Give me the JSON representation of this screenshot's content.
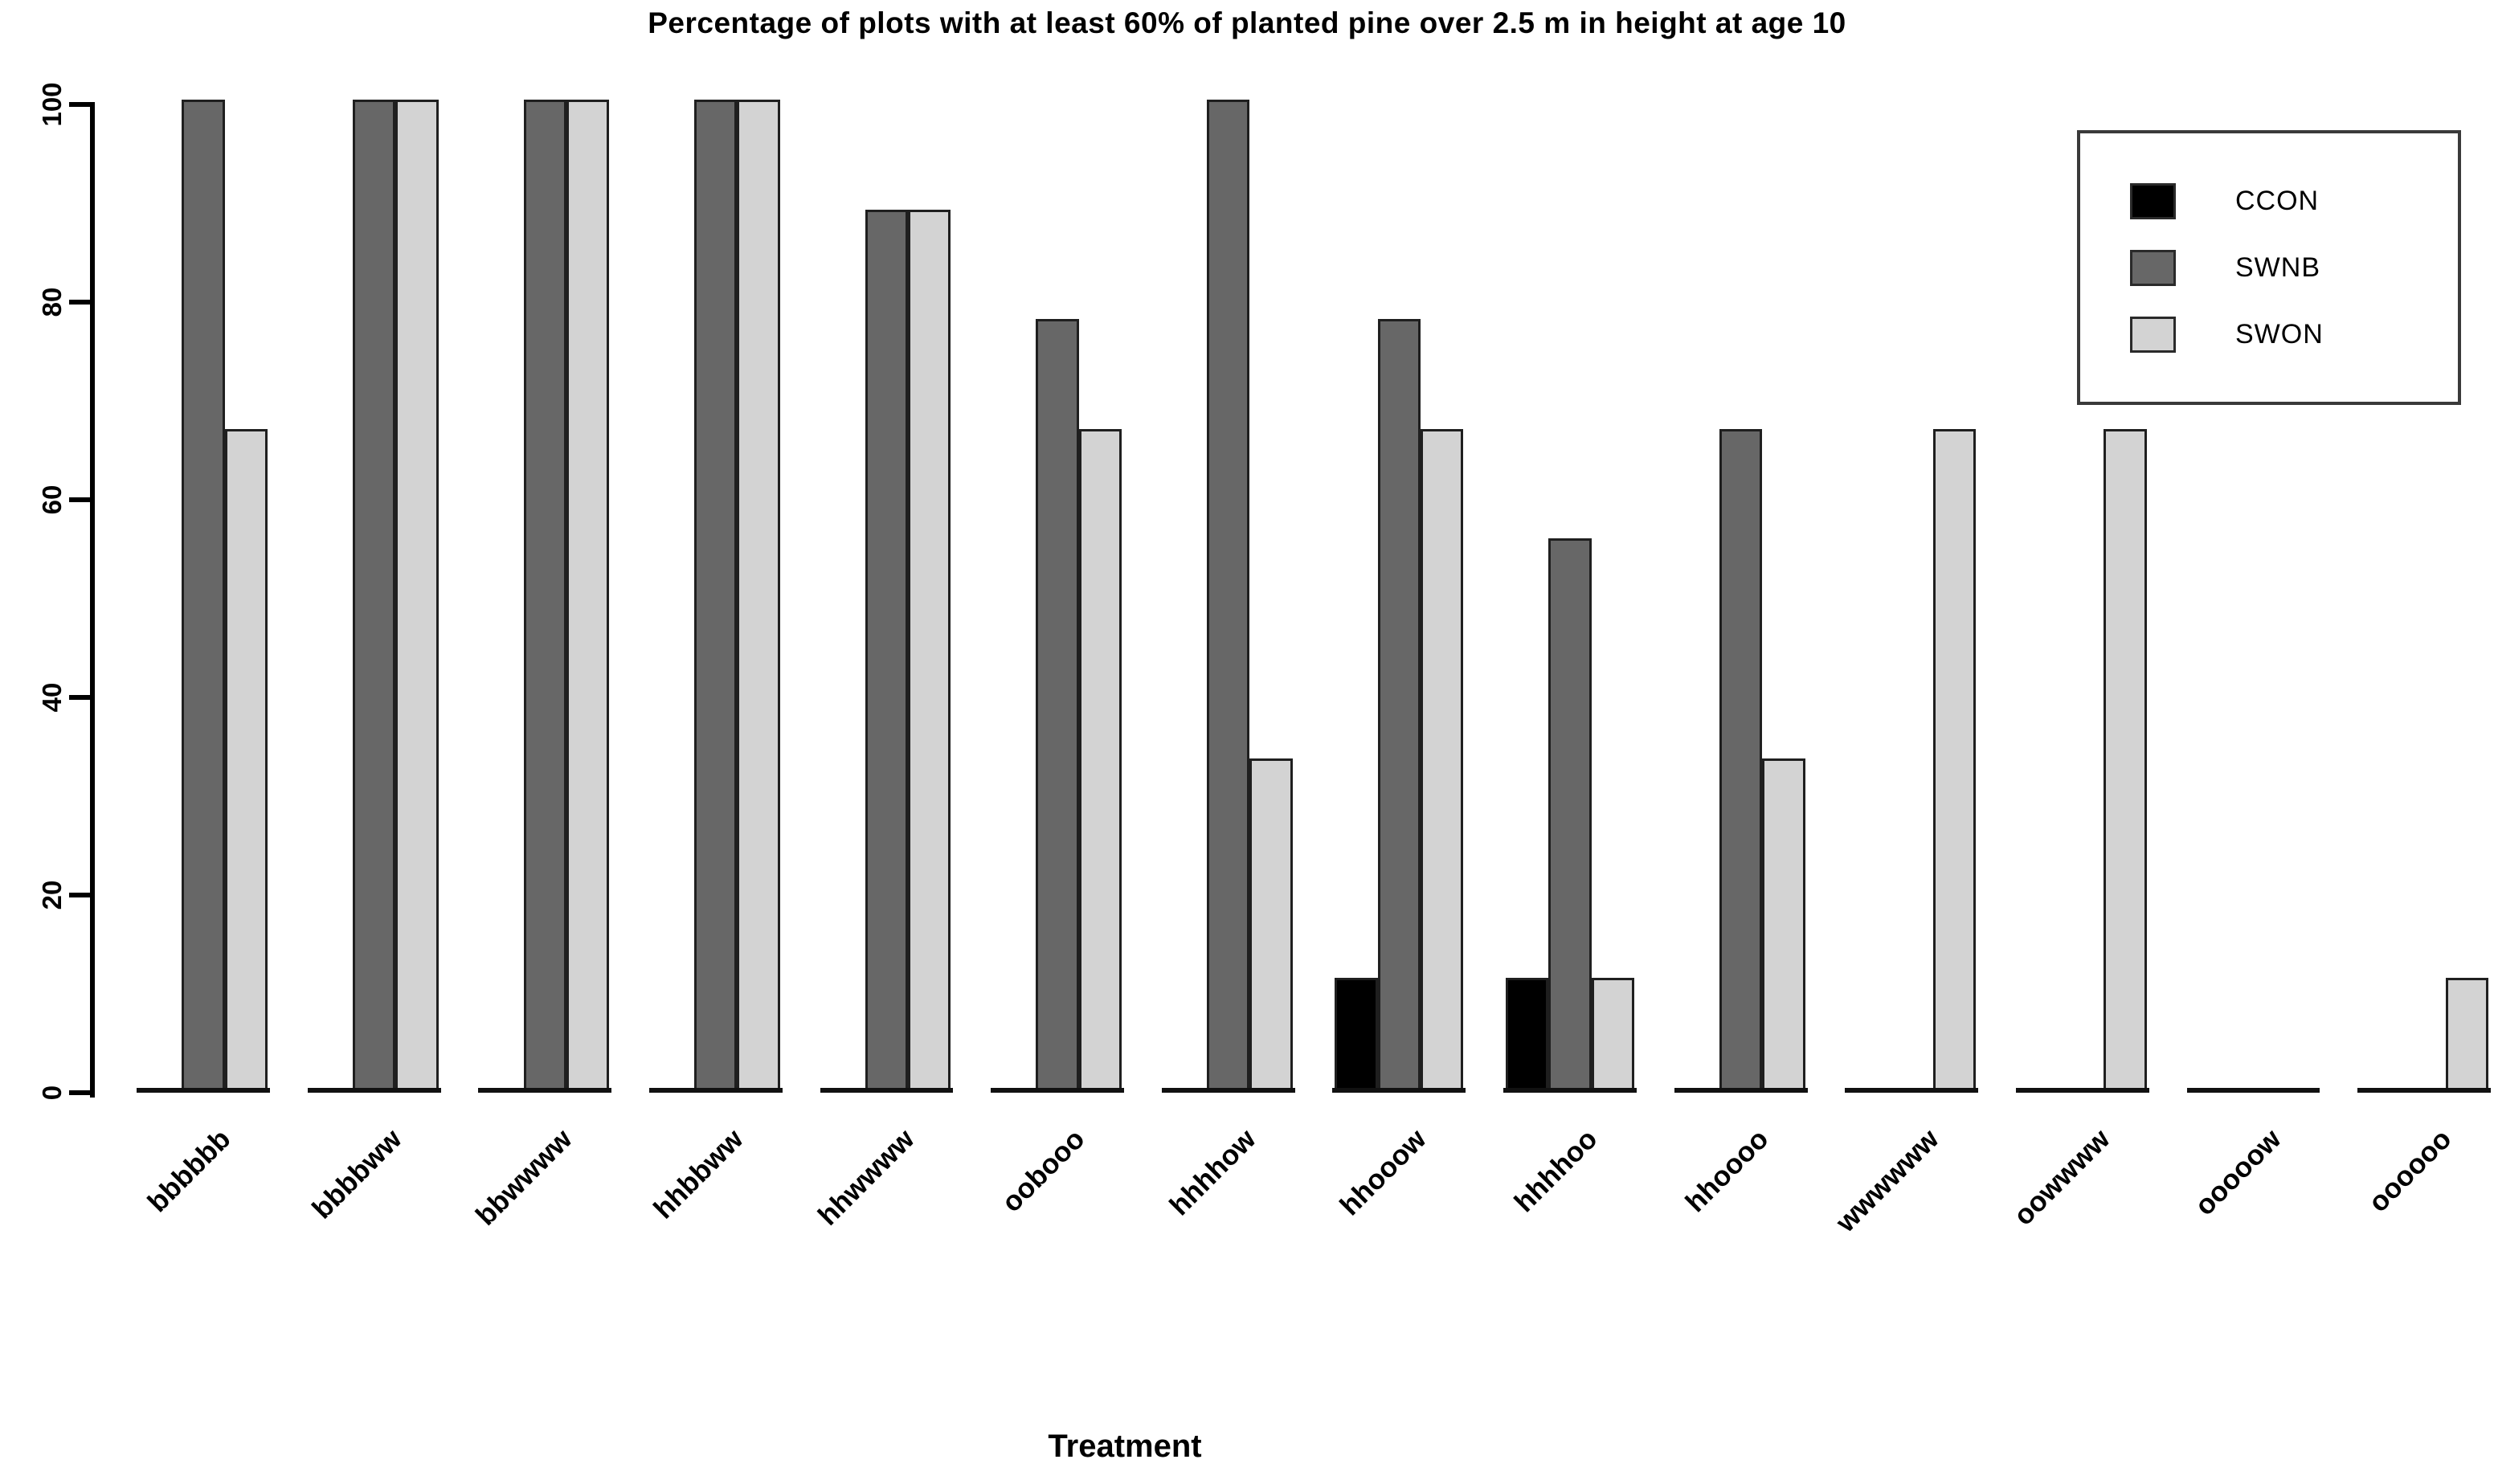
{
  "chart_data": {
    "type": "bar",
    "grouped": true,
    "title": "Percentage of plots with at least 60% of planted pine over 2.5 m in height at age 10",
    "xlabel": "Treatment",
    "ylabel": "",
    "ylim": [
      0,
      100
    ],
    "yticks": [
      0,
      20,
      40,
      60,
      80,
      100
    ],
    "grid": false,
    "legend_position": "top-right",
    "categories": [
      "bbbbbb",
      "bbbbww",
      "bbwwww",
      "hhbbww",
      "hhwwww",
      "oobooo",
      "hhhhow",
      "hhooow",
      "hhhhoo",
      "hhoooo",
      "wwwwww",
      "oowwww",
      "ooooow",
      "oooooo"
    ],
    "series": [
      {
        "name": "CCON",
        "color": "#000000",
        "values": [
          0,
          0,
          0,
          0,
          0,
          0,
          0,
          11.1,
          11.1,
          0,
          0,
          0,
          0,
          0
        ]
      },
      {
        "name": "SWNB",
        "color": "#676767",
        "values": [
          100,
          100,
          100,
          100,
          88.9,
          77.8,
          100,
          77.8,
          55.6,
          66.7,
          0,
          0,
          0,
          0
        ]
      },
      {
        "name": "SWON",
        "color": "#d3d3d3",
        "values": [
          66.7,
          100,
          100,
          100,
          88.9,
          66.7,
          33.3,
          66.7,
          11.1,
          33.3,
          66.7,
          66.7,
          0,
          11.1
        ]
      }
    ],
    "bar_border_color": "#1f1f1f",
    "axis_color": "#000000"
  }
}
